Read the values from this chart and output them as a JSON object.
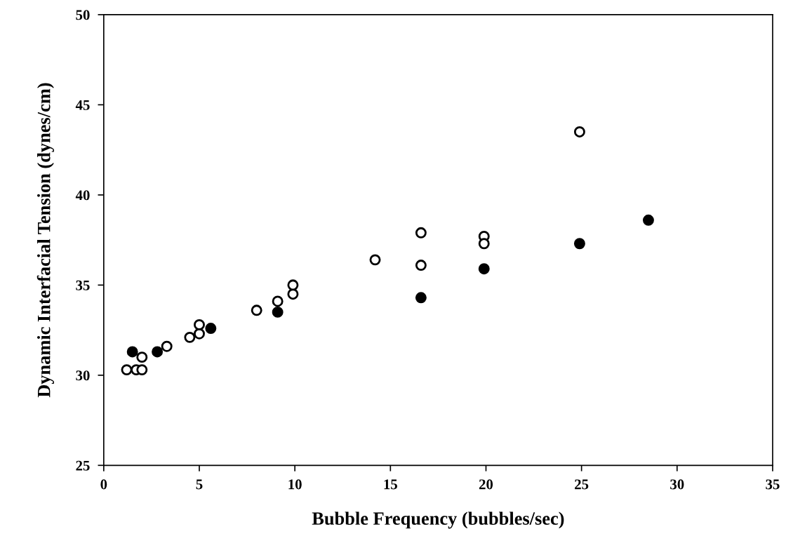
{
  "chart_data": {
    "type": "scatter",
    "xlabel": "Bubble Frequency (bubbles/sec)",
    "ylabel": "Dynamic Interfacial Tension (dynes/cm)",
    "xlim": [
      0,
      35
    ],
    "xticks": [
      0,
      5,
      10,
      15,
      20,
      25,
      30,
      35
    ],
    "ylim": [
      25,
      50
    ],
    "yticks": [
      25,
      30,
      35,
      40,
      45,
      50
    ],
    "grid": false,
    "marker": "circle",
    "series": [
      {
        "color": "#000000",
        "x": [
          1.5,
          2.8,
          5.6,
          9.1,
          16.6,
          19.9,
          24.9,
          28.5
        ],
        "values": [
          31.3,
          31.3,
          32.6,
          33.5,
          34.3,
          35.9,
          37.3,
          38.6
        ]
      },
      {
        "color": "#ffffff",
        "x": [
          1.2,
          1.7,
          2.0,
          2.0,
          3.3,
          4.5,
          5.0,
          5.0,
          8.0,
          9.1,
          9.9,
          9.9,
          14.2,
          16.6,
          16.6,
          19.9,
          19.9,
          24.9
        ],
        "values": [
          30.3,
          30.3,
          30.3,
          31.0,
          31.6,
          32.1,
          32.3,
          32.8,
          33.6,
          34.1,
          34.5,
          35.0,
          36.4,
          37.9,
          36.1,
          37.7,
          37.3,
          43.5
        ]
      }
    ]
  }
}
